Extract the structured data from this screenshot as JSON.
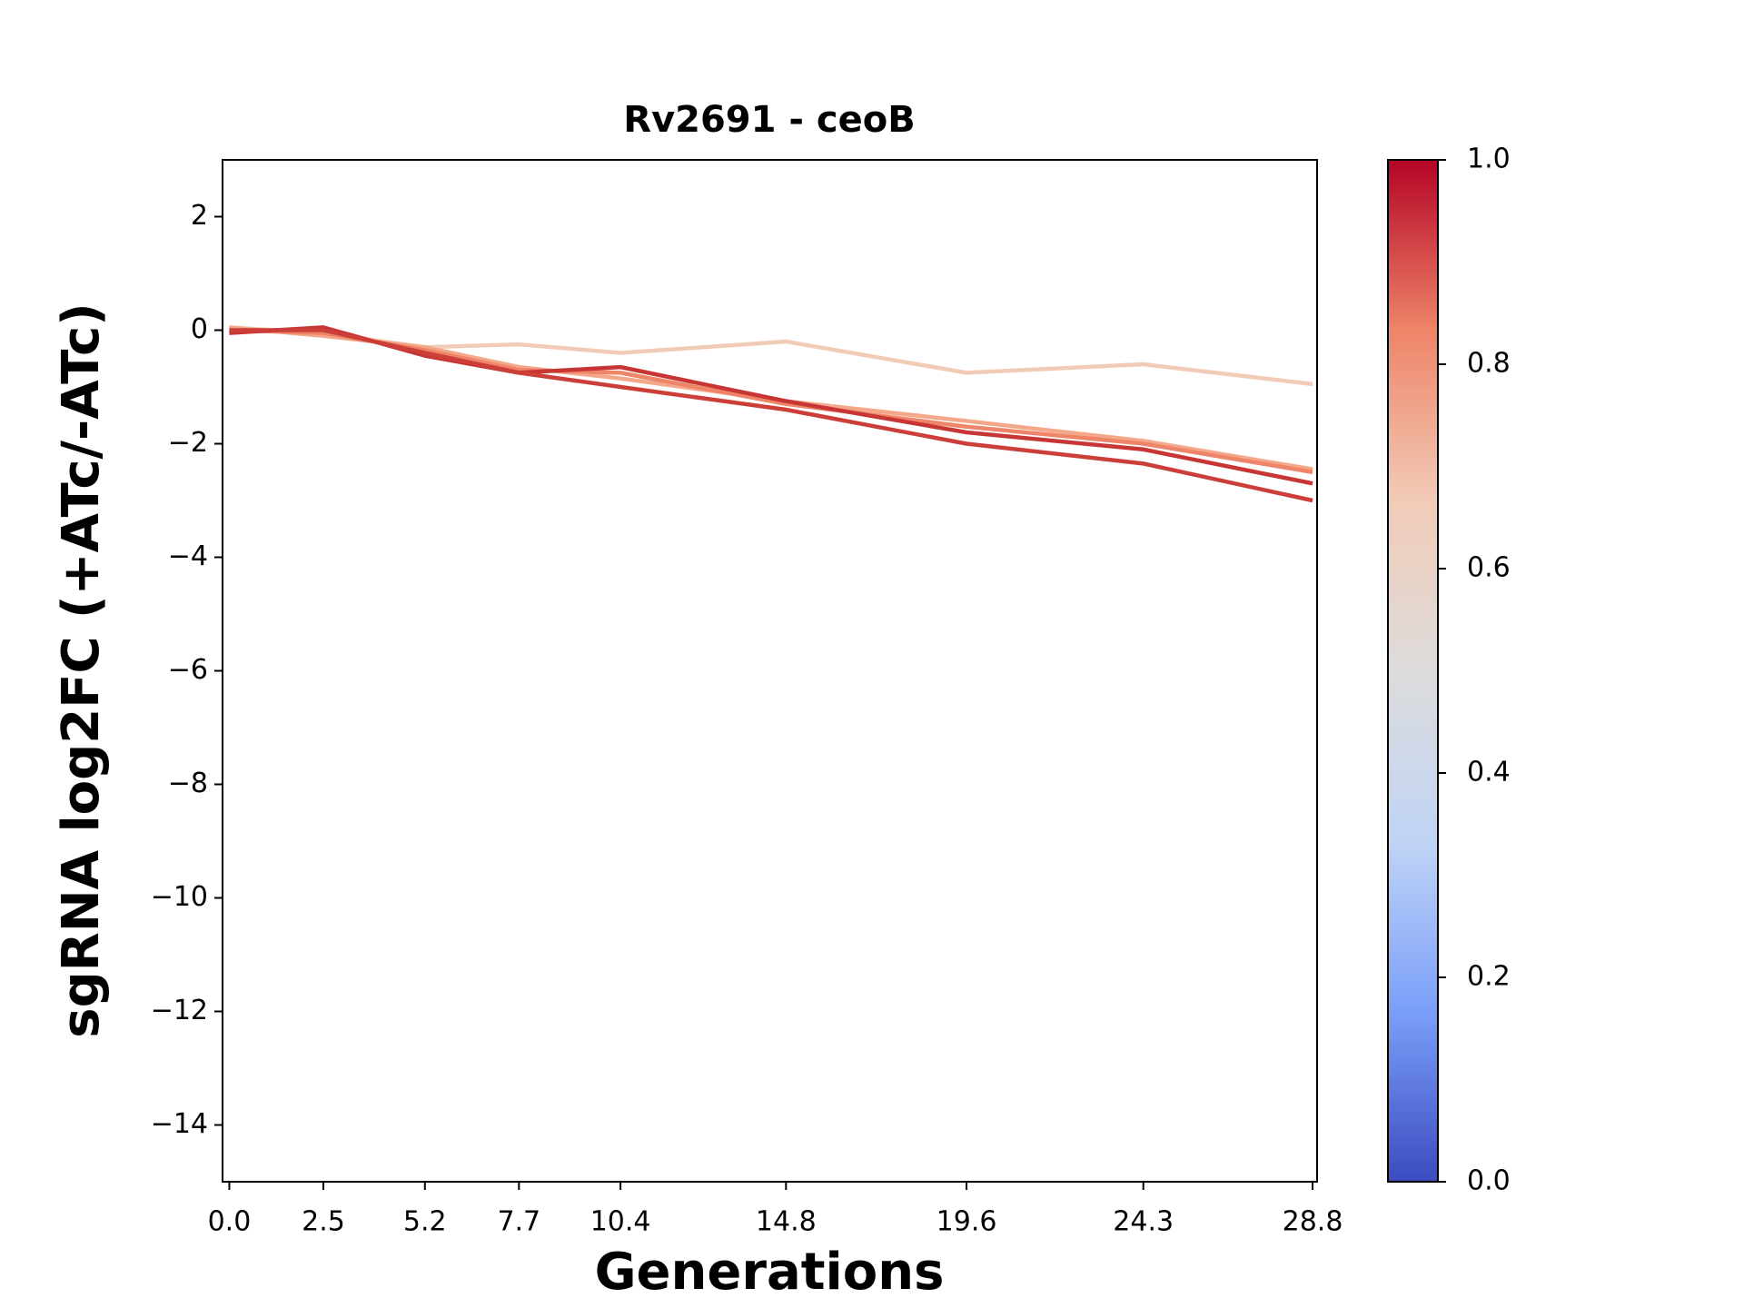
{
  "chart_data": {
    "type": "line",
    "title": "Rv2691 - ceoB",
    "xlabel": "Generations",
    "ylabel": "sgRNA log2FC (+ATc/-ATc)",
    "x": [
      0,
      2.5,
      5.2,
      7.7,
      10.4,
      14.8,
      19.6,
      24.3,
      28.8
    ],
    "series": [
      {
        "color": "#f2cbb7",
        "values": [
          0.05,
          -0.05,
          -0.3,
          -0.25,
          -0.4,
          -0.2,
          -0.75,
          -0.6,
          -0.95
        ]
      },
      {
        "color": "#f4a88a",
        "values": [
          0.05,
          -0.1,
          -0.3,
          -0.65,
          -0.85,
          -1.25,
          -1.6,
          -1.95,
          -2.45
        ]
      },
      {
        "color": "#ee8468",
        "values": [
          0.0,
          -0.05,
          -0.35,
          -0.7,
          -0.75,
          -1.3,
          -1.7,
          -2.0,
          -2.5
        ]
      },
      {
        "color": "#c73635",
        "values": [
          -0.05,
          0.05,
          -0.45,
          -0.75,
          -0.65,
          -1.25,
          -1.8,
          -2.1,
          -2.7
        ]
      },
      {
        "color": "#cc3f39",
        "values": [
          0.0,
          0.0,
          -0.4,
          -0.75,
          -1.0,
          -1.4,
          -2.0,
          -2.35,
          -3.0
        ]
      }
    ],
    "xlim": [
      -0.18,
      28.92
    ],
    "ylim": [
      -15,
      3
    ],
    "xticks": [
      {
        "value": 0,
        "label": "0.0"
      },
      2.5,
      5.2,
      7.7,
      10.4,
      14.8,
      19.6,
      24.3,
      28.8
    ],
    "yticks": [
      {
        "value": -14,
        "label": "−14"
      },
      {
        "value": -12,
        "label": "−12"
      },
      {
        "value": -10,
        "label": "−10"
      },
      {
        "value": -8,
        "label": "−8"
      },
      {
        "value": -6,
        "label": "−6"
      },
      {
        "value": -4,
        "label": "−4"
      },
      {
        "value": -2,
        "label": "−2"
      },
      0,
      2
    ],
    "grid": false,
    "colorbar": {
      "lim": [
        0,
        1
      ],
      "ticks": [
        {
          "value": 0,
          "label": "0.0"
        },
        0.2,
        0.4,
        0.6,
        0.8,
        {
          "value": 1,
          "label": "1.0"
        }
      ],
      "colormap": [
        "#3b4cc0",
        "#7b9ff9",
        "#c0d4f5",
        "#dddcdc",
        "#f2cbb7",
        "#ee8468",
        "#b40426"
      ]
    }
  }
}
